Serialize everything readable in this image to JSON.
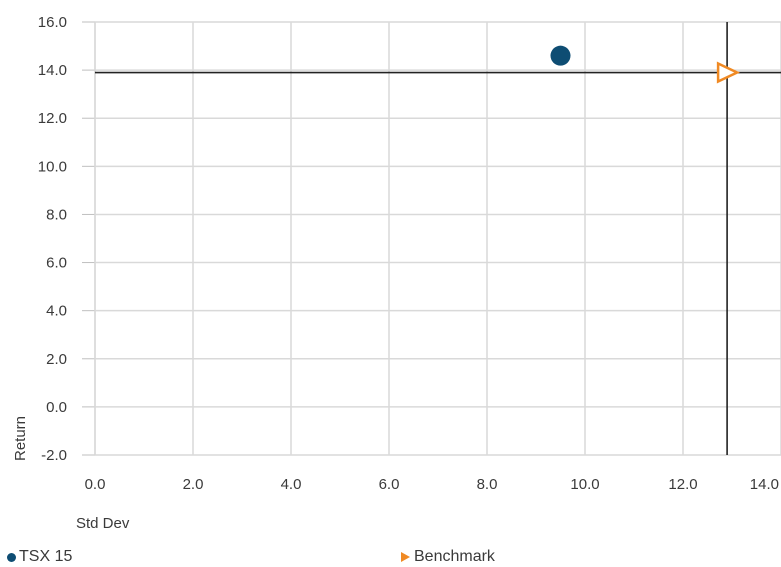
{
  "chart_data": {
    "type": "scatter",
    "title": "",
    "xlabel": "Std Dev",
    "ylabel": "Return",
    "xlim": [
      0.0,
      14.0
    ],
    "ylim": [
      -2.0,
      16.0
    ],
    "xticks": [
      "0.0",
      "2.0",
      "4.0",
      "6.0",
      "8.0",
      "10.0",
      "12.0",
      "14.0"
    ],
    "yticks": [
      "-2.0",
      "0.0",
      "2.0",
      "4.0",
      "6.0",
      "8.0",
      "10.0",
      "12.0",
      "14.0",
      "16.0"
    ],
    "grid": true,
    "legend_position": "bottom",
    "reference_lines": {
      "x": 12.9,
      "y": 13.9
    },
    "series": [
      {
        "name": "TSX 15",
        "marker": "circle",
        "color": "#0e4d73",
        "points": [
          {
            "x": 9.5,
            "y": 14.6
          }
        ]
      },
      {
        "name": "Benchmark",
        "marker": "triangle-right-open",
        "color": "#f08a24",
        "points": [
          {
            "x": 12.9,
            "y": 13.9
          }
        ]
      }
    ]
  }
}
